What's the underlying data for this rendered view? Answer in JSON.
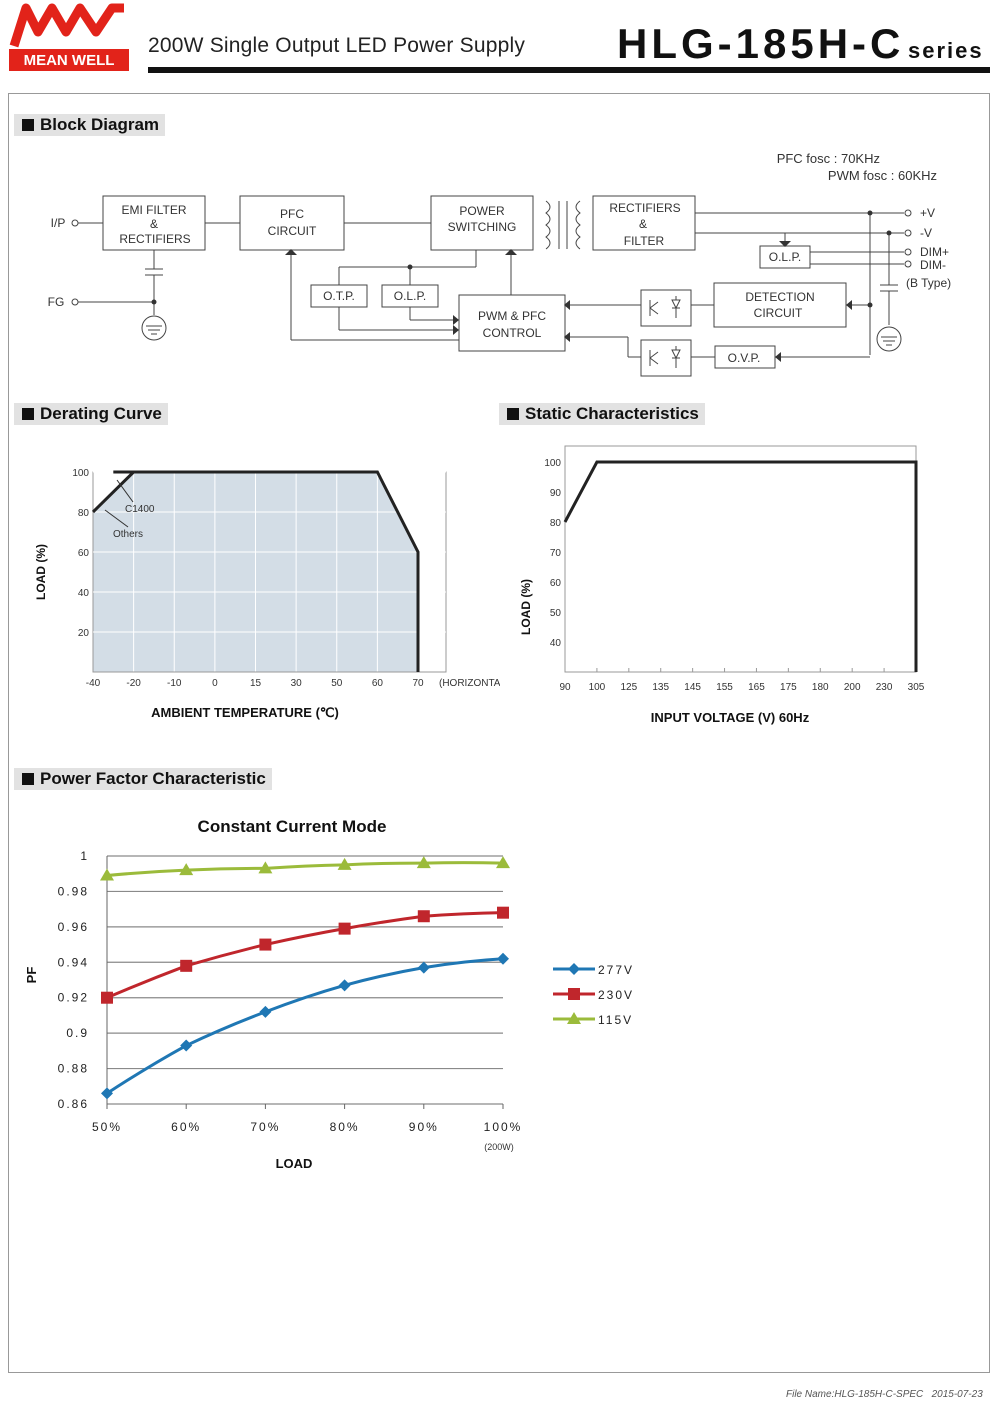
{
  "header": {
    "brand": "MEAN WELL",
    "subtitle": "200W Single Output LED Power Supply",
    "model": "HLG-185H-C",
    "series_label": "series"
  },
  "block_diagram": {
    "title": "Block Diagram",
    "fosc": [
      "PFC fosc : 70KHz",
      "PWM fosc : 60KHz"
    ],
    "blocks": {
      "emi": [
        "EMI FILTER",
        "&",
        "RECTIFIERS"
      ],
      "pfc": [
        "PFC",
        "CIRCUIT"
      ],
      "power": [
        "POWER",
        "SWITCHING"
      ],
      "rect": [
        "RECTIFIERS",
        "&",
        "FILTER"
      ],
      "olp2": "O.L.P.",
      "otp": "O.T.P.",
      "olp": "O.L.P.",
      "pwm": [
        "PWM & PFC",
        "CONTROL"
      ],
      "detect": [
        "DETECTION",
        "CIRCUIT"
      ],
      "ovp": "O.V.P."
    },
    "terminals": {
      "ip": "I/P",
      "fg": "FG",
      "vplus": "+V",
      "vminus": "-V",
      "dimplus": "DIM+",
      "dimminus": "DIM-",
      "btype": "(B Type)"
    }
  },
  "derating": {
    "title": "Derating Curve",
    "chart_data": {
      "type": "line",
      "series": [
        {
          "name": "C1400",
          "x": [
            -30,
            60,
            70
          ],
          "y": [
            100,
            100,
            60
          ]
        },
        {
          "name": "Others",
          "x": [
            -40,
            -20
          ],
          "y": [
            80,
            100
          ]
        }
      ],
      "xticks": [
        "-40",
        "-20",
        "-10",
        "0",
        "15",
        "30",
        "50",
        "60",
        "70"
      ],
      "yticks": [
        "20",
        "40",
        "60",
        "80",
        "100"
      ],
      "xunit": "(HORIZONTAL)",
      "xlabel": "AMBIENT TEMPERATURE (℃)",
      "ylabel": "LOAD (%)",
      "annotations": [
        "C1400",
        "Others"
      ]
    }
  },
  "static": {
    "title": "Static Characteristics",
    "chart_data": {
      "type": "line",
      "x": [
        90,
        100,
        305,
        305
      ],
      "y": [
        80,
        100,
        100,
        0
      ],
      "xticks": [
        "90",
        "100",
        "125",
        "135",
        "145",
        "155",
        "165",
        "175",
        "180",
        "200",
        "230",
        "305"
      ],
      "yticks": [
        "40",
        "50",
        "60",
        "70",
        "80",
        "90",
        "100"
      ],
      "xlabel": "INPUT VOLTAGE (V) 60Hz",
      "ylabel": "LOAD (%)"
    }
  },
  "pf": {
    "title": "Power Factor Characteristic",
    "chart_data": {
      "type": "line",
      "title": "Constant Current Mode",
      "categories": [
        "50%",
        "60%",
        "70%",
        "80%",
        "90%",
        "100%"
      ],
      "x_note": "(200W)",
      "series": [
        {
          "name": "277V",
          "color": "#1f77b4",
          "marker": "diamond",
          "values": [
            0.866,
            0.893,
            0.912,
            0.927,
            0.937,
            0.942
          ]
        },
        {
          "name": "230V",
          "color": "#c0262c",
          "marker": "square",
          "values": [
            0.92,
            0.938,
            0.95,
            0.959,
            0.966,
            0.968
          ]
        },
        {
          "name": "115V",
          "color": "#9bbb3b",
          "marker": "triangle",
          "values": [
            0.989,
            0.992,
            0.993,
            0.995,
            0.996,
            0.996
          ]
        }
      ],
      "yticks": [
        "0.86",
        "0.88",
        "0.9",
        "0.92",
        "0.94",
        "0.96",
        "0.98",
        "1"
      ],
      "ylim": [
        0.86,
        1.0
      ],
      "xlabel": "LOAD",
      "ylabel": "PF"
    }
  },
  "footer": {
    "file": "File Name:HLG-185H-C-SPEC",
    "date": "2015-07-23"
  }
}
